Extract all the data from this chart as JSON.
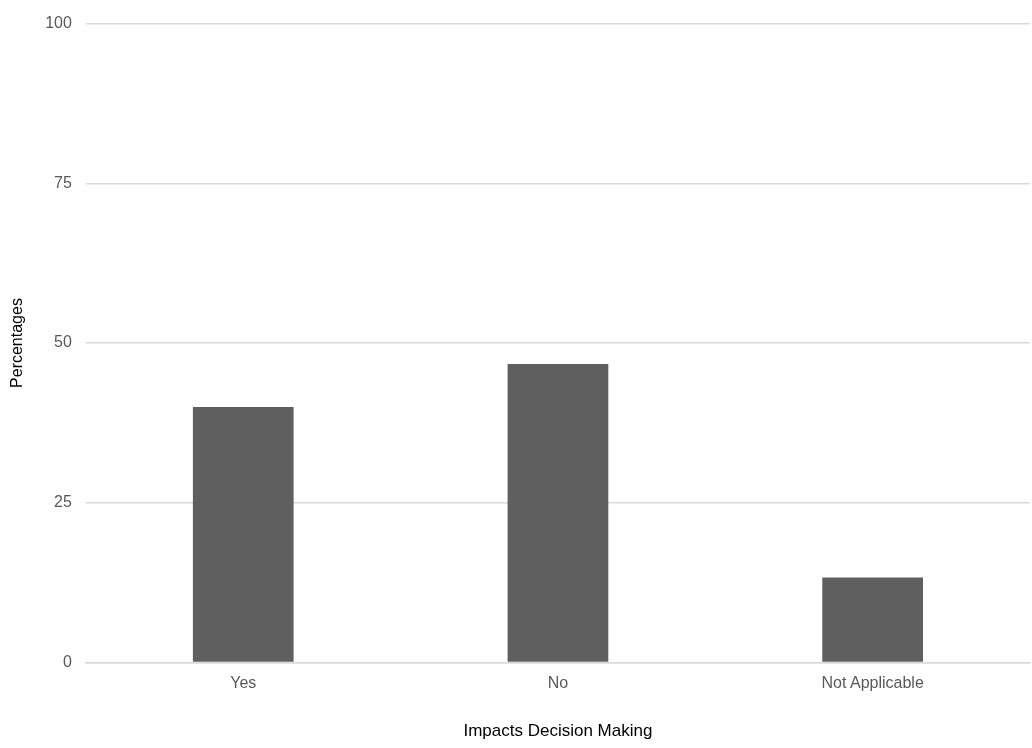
{
  "chart_data": {
    "type": "bar",
    "xlabel": "Impacts Decision Making",
    "ylabel": "Percentages",
    "categories": [
      "Yes",
      "No",
      "Not Applicable"
    ],
    "values": [
      40,
      46.7,
      13.3
    ],
    "color": "#5f5f5f",
    "ylim": [
      0,
      100
    ],
    "yticks": [
      0,
      25,
      50,
      75,
      100
    ],
    "grid": "y",
    "legend": false
  }
}
